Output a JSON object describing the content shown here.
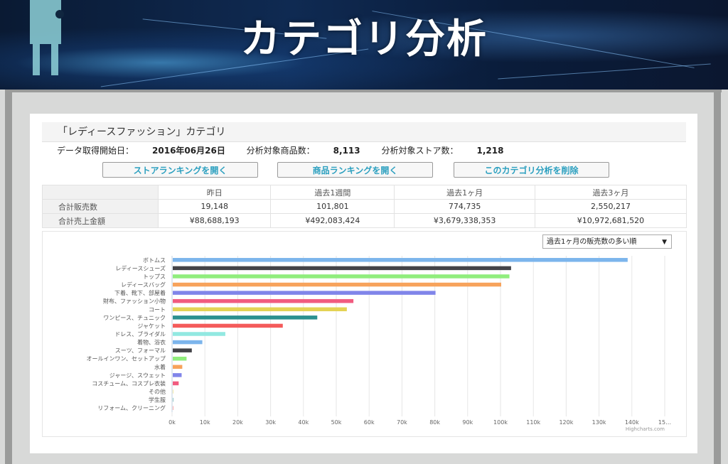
{
  "banner": {
    "title": "カテゴリ分析"
  },
  "category": {
    "title": "「レディースファッション」カテゴリ",
    "start_label": "データ取得開始日：",
    "start_value": "2016年06月26日",
    "items_label": "分析対象商品数：",
    "items_value": "8,113",
    "stores_label": "分析対象ストア数：",
    "stores_value": "1,218"
  },
  "buttons": {
    "store_ranking": "ストアランキングを開く",
    "item_ranking": "商品ランキングを開く",
    "delete_analysis": "このカテゴリ分析を削除"
  },
  "stats": {
    "headers": [
      "昨日",
      "過去1週間",
      "過去1ヶ月",
      "過去3ヶ月"
    ],
    "rows": [
      {
        "label": "合計販売数",
        "values": [
          "19,148",
          "101,801",
          "774,735",
          "2,550,217"
        ]
      },
      {
        "label": "合計売上金額",
        "values": [
          "¥88,688,193",
          "¥492,083,424",
          "¥3,679,338,353",
          "¥10,972,681,520"
        ]
      }
    ]
  },
  "sort": {
    "selected": "過去1ヶ月の販売数の多い順"
  },
  "credit": "Highcharts.com",
  "chart_data": {
    "type": "bar",
    "orientation": "horizontal",
    "categories": [
      "ボトムス",
      "レディースシューズ",
      "トップス",
      "レディースバッグ",
      "下着、靴下、部屋着",
      "財布、ファッション小物",
      "コート",
      "ワンピース、チュニック",
      "ジャケット",
      "ドレス、ブライダル",
      "着物、浴衣",
      "スーツ、フォーマル",
      "オールインワン、セットアップ",
      "水着",
      "ジャージ、スウェット",
      "コスチューム、コスプレ衣装",
      "その他",
      "学生服",
      "リフォーム、クリーニング"
    ],
    "values": [
      138500,
      103000,
      102500,
      100000,
      80000,
      55000,
      53000,
      44000,
      33500,
      16000,
      9000,
      5800,
      4200,
      2900,
      2700,
      1800,
      100,
      80,
      50
    ],
    "colors": [
      "#7cb5ec",
      "#434348",
      "#90ed7d",
      "#f7a35c",
      "#8085e9",
      "#f15c80",
      "#e4d354",
      "#2b908f",
      "#f45b5b",
      "#91e8e1",
      "#7cb5ec",
      "#434348",
      "#90ed7d",
      "#f7a35c",
      "#8085e9",
      "#f15c80",
      "#e4d354",
      "#2b908f",
      "#f45b5b"
    ],
    "x_ticks": [
      "0k",
      "10k",
      "20k",
      "30k",
      "40k",
      "50k",
      "60k",
      "70k",
      "80k",
      "90k",
      "100k",
      "110k",
      "120k",
      "130k",
      "140k",
      "15…"
    ],
    "xlim": [
      0,
      150000
    ],
    "grid": true
  }
}
